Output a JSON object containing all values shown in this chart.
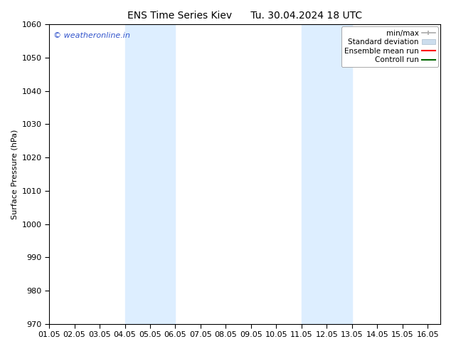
{
  "title_left": "ENS Time Series Kiev",
  "title_right": "Tu. 30.04.2024 18 UTC",
  "ylabel": "Surface Pressure (hPa)",
  "xlim": [
    1.0,
    16.5
  ],
  "ylim": [
    970,
    1060
  ],
  "yticks": [
    970,
    980,
    990,
    1000,
    1010,
    1020,
    1030,
    1040,
    1050,
    1060
  ],
  "xtick_labels": [
    "01.05",
    "02.05",
    "03.05",
    "04.05",
    "05.05",
    "06.05",
    "07.05",
    "08.05",
    "09.05",
    "10.05",
    "11.05",
    "12.05",
    "13.05",
    "14.05",
    "15.05",
    "16.05"
  ],
  "xtick_positions": [
    1.0,
    2.0,
    3.0,
    4.0,
    5.0,
    6.0,
    7.0,
    8.0,
    9.0,
    10.0,
    11.0,
    12.0,
    13.0,
    14.0,
    15.0,
    16.0
  ],
  "shaded_bands": [
    {
      "x_start": 4.0,
      "x_end": 6.0,
      "color": "#ddeeff"
    },
    {
      "x_start": 11.0,
      "x_end": 13.0,
      "color": "#ddeeff"
    }
  ],
  "watermark_text": "© weatheronline.in",
  "watermark_color": "#3355cc",
  "background_color": "#ffffff",
  "grid_color": "#cccccc",
  "legend_entries": [
    {
      "label": "min/max",
      "color": "#aaaaaa",
      "style": "line_with_caps"
    },
    {
      "label": "Standard deviation",
      "color": "#ccdded",
      "style": "filled_box"
    },
    {
      "label": "Ensemble mean run",
      "color": "#ff0000",
      "style": "line"
    },
    {
      "label": "Controll run",
      "color": "#006600",
      "style": "line"
    }
  ],
  "title_fontsize": 10,
  "axis_fontsize": 8,
  "tick_fontsize": 8,
  "legend_fontsize": 7.5
}
